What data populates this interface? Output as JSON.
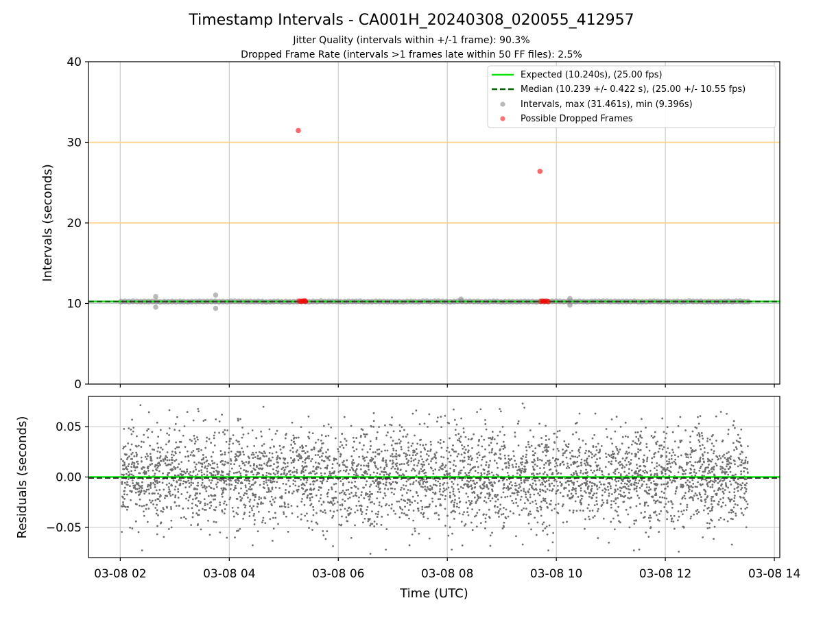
{
  "title": "Timestamp Intervals - CA001H_20240308_020055_412957",
  "subtitle1": "Jitter Quality (intervals within +/-1 frame): 90.3%",
  "subtitle2": "Dropped Frame Rate (intervals >1 frames late within 50 FF files): 2.5%",
  "colors": {
    "expected": "#00e600",
    "median": "#006400",
    "intervals": "#808080",
    "dropped": "#ff0000",
    "threshold": "#ffd27f",
    "grid": "#cccccc"
  },
  "chart_data": [
    {
      "type": "scatter",
      "ylabel": "Intervals (seconds)",
      "xlabel": "",
      "ylim": [
        0,
        40
      ],
      "xlim": [
        "2024-03-08 01:25",
        "2024-03-08 14:06"
      ],
      "yticks": [
        "0",
        "10",
        "20",
        "30",
        "40"
      ],
      "threshold_lines_y": [
        20,
        30
      ],
      "grid": true,
      "legend_position": "top-right",
      "legend": [
        {
          "label": "Expected (10.240s), (25.00 fps)",
          "style": "solid-line"
        },
        {
          "label": "Median (10.239 +/- 0.422 s), (25.00 +/- 10.55 fps)",
          "style": "dashed-line"
        },
        {
          "label": "Intervals, max (31.461s), min (9.396s)",
          "style": "gray-dot"
        },
        {
          "label": "Possible Dropped Frames",
          "style": "red-dot"
        }
      ],
      "expected_value": 10.24,
      "median_value": 10.239,
      "intervals_series": {
        "x_start": "2024-03-08 02:01",
        "x_end": "2024-03-08 13:31",
        "typical_y": 10.24,
        "min": 9.396,
        "max": 31.461
      },
      "interval_outliers": [
        {
          "x": "2024-03-08 02:39",
          "y": 10.85
        },
        {
          "x": "2024-03-08 02:39",
          "y": 9.55
        },
        {
          "x": "2024-03-08 03:45",
          "y": 11.05
        },
        {
          "x": "2024-03-08 03:45",
          "y": 9.4
        },
        {
          "x": "2024-03-08 08:15",
          "y": 10.55
        },
        {
          "x": "2024-03-08 10:15",
          "y": 10.6
        },
        {
          "x": "2024-03-08 10:15",
          "y": 9.8
        }
      ],
      "dropped_frames": [
        {
          "x": "2024-03-08 05:16",
          "y": 31.461
        },
        {
          "x": "2024-03-08 09:42",
          "y": 26.4
        },
        {
          "x": "2024-03-08 05:17",
          "y": 10.3
        },
        {
          "x": "2024-03-08 05:19",
          "y": 10.25
        },
        {
          "x": "2024-03-08 05:21",
          "y": 10.3
        },
        {
          "x": "2024-03-08 05:23",
          "y": 10.35
        },
        {
          "x": "2024-03-08 05:24",
          "y": 10.25
        },
        {
          "x": "2024-03-08 09:43",
          "y": 10.25
        },
        {
          "x": "2024-03-08 09:45",
          "y": 10.3
        },
        {
          "x": "2024-03-08 09:47",
          "y": 10.25
        },
        {
          "x": "2024-03-08 09:49",
          "y": 10.3
        },
        {
          "x": "2024-03-08 09:51",
          "y": 10.25
        }
      ]
    },
    {
      "type": "scatter",
      "ylabel": "Residuals (seconds)",
      "xlabel": "Time (UTC)",
      "ylim": [
        -0.08,
        0.08
      ],
      "xlim": [
        "2024-03-08 01:25",
        "2024-03-08 14:06"
      ],
      "yticks": [
        "0.05",
        "0.00",
        "−0.05"
      ],
      "ytick_values": [
        0.05,
        0,
        -0.05
      ],
      "xticks": [
        "03-08 02",
        "03-08 04",
        "03-08 06",
        "03-08 08",
        "03-08 10",
        "03-08 12",
        "03-08 14"
      ],
      "grid": true,
      "expected_residual": 0,
      "median_residual": -0.001,
      "residuals_series": {
        "x_start": "2024-03-08 02:01",
        "x_end": "2024-03-08 13:31",
        "count_approx": 4000,
        "typical_range": [
          -0.05,
          0.05
        ],
        "extreme_range": [
          -0.077,
          0.073
        ]
      }
    }
  ]
}
